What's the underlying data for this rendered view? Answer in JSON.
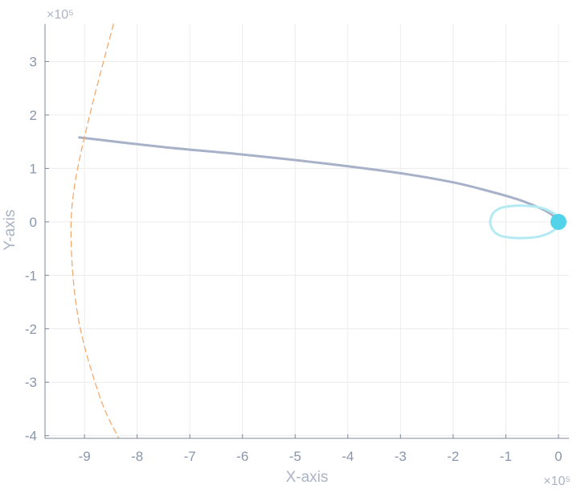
{
  "chart_data": {
    "type": "line",
    "title": "",
    "xlabel": "X-axis",
    "ylabel": "Y-axis",
    "x_exponent_label": "×10⁵",
    "y_exponent_label": "×10⁵",
    "xlim": [
      -9.75,
      0.2
    ],
    "ylim": [
      -4.05,
      3.7
    ],
    "x_ticks": [
      -9,
      -8,
      -7,
      -6,
      -5,
      -4,
      -3,
      -2,
      -1,
      0
    ],
    "y_ticks": [
      -4,
      -3,
      -2,
      -1,
      0,
      1,
      2,
      3
    ],
    "grid": true,
    "legend": "none",
    "series": [
      {
        "kind": "trajectory",
        "color": "#a7b2c8",
        "style": "solid",
        "x": [
          -9.1,
          -7.5,
          -6.0,
          -4.5,
          -3.0,
          -2.0,
          -1.3,
          -0.8,
          -0.5,
          -0.25,
          -0.08,
          0.0
        ],
        "y": [
          1.58,
          1.4,
          1.26,
          1.1,
          0.91,
          0.74,
          0.57,
          0.43,
          0.32,
          0.21,
          0.1,
          0.02
        ]
      },
      {
        "kind": "orbit",
        "color": "#b3eaf3",
        "style": "solid",
        "x": [
          -1.3,
          -1.25,
          -1.1,
          -0.85,
          -0.6,
          -0.35,
          -0.12,
          0.05,
          0.05,
          -0.12,
          -0.35,
          -0.6,
          -0.85,
          -1.1,
          -1.25,
          -1.3
        ],
        "y": [
          0.0,
          0.15,
          0.26,
          0.3,
          0.3,
          0.27,
          0.18,
          0.04,
          -0.04,
          -0.18,
          -0.27,
          -0.3,
          -0.3,
          -0.26,
          -0.15,
          0.0
        ]
      },
      {
        "kind": "boundary",
        "color": "#f2aa6e",
        "style": "dashed",
        "x": [
          -8.45,
          -8.9,
          -9.2,
          -9.25,
          -9.1,
          -8.7,
          -8.35
        ],
        "y": [
          3.7,
          2.0,
          0.6,
          -0.5,
          -1.9,
          -3.3,
          -4.05
        ]
      },
      {
        "kind": "body",
        "color": "#52d3ea",
        "style": "marker",
        "x": [
          0.0
        ],
        "y": [
          0.0
        ]
      }
    ]
  }
}
